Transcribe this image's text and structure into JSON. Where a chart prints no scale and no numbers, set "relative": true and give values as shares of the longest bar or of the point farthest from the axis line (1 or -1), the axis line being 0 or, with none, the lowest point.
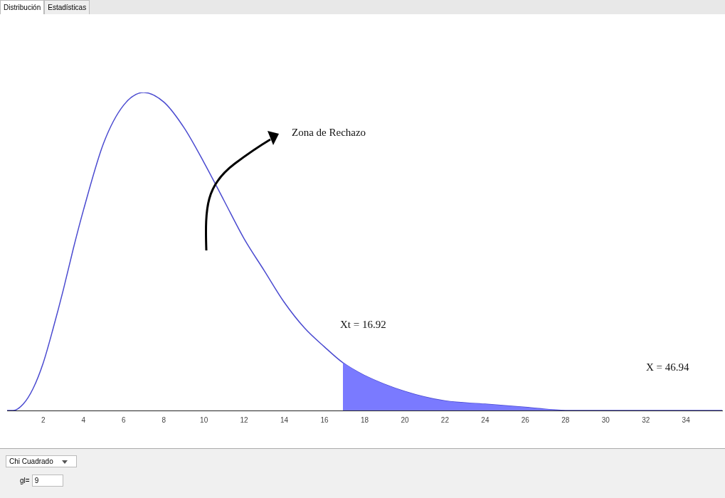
{
  "chart_data": {
    "type": "line",
    "relative": true,
    "tick_labels": "x",
    "grid": false,
    "legend": false,
    "marker": "none",
    "line_style": "solid",
    "xlim": [
      0.2,
      35.8
    ],
    "xticks": [
      2,
      4,
      6,
      8,
      10,
      12,
      14,
      16,
      18,
      20,
      22,
      24,
      26,
      28,
      30,
      32,
      34
    ],
    "series": [
      {
        "color": "#4a4ad0",
        "x": [
          0.2,
          0.5,
          1,
          1.5,
          2,
          2.5,
          3,
          3.5,
          4,
          5,
          6,
          7,
          8,
          9,
          10,
          11,
          12,
          13,
          14,
          15,
          16,
          16.92,
          18,
          20,
          22,
          24,
          26,
          28,
          30,
          32,
          34,
          35.8
        ],
        "values": [
          0,
          0,
          0.02,
          0.07,
          0.15,
          0.26,
          0.38,
          0.51,
          0.63,
          0.84,
          0.96,
          1,
          0.97,
          0.89,
          0.78,
          0.66,
          0.54,
          0.44,
          0.34,
          0.26,
          0.2,
          0.15,
          0.11,
          0.06,
          0.03,
          0.02,
          0.01,
          0,
          0,
          0,
          0,
          0
        ]
      },
      {
        "type": "area",
        "color": "#7a7aff",
        "x": [
          16.92,
          18,
          20,
          22,
          24,
          26,
          28,
          30,
          32,
          34,
          35.8
        ],
        "values": [
          0.15,
          0.11,
          0.06,
          0.03,
          0.02,
          0.01,
          0,
          0,
          0,
          0,
          0
        ]
      }
    ],
    "annotations": [
      "Distribución",
      "Estadísticas",
      "Chi Cuadrado",
      "gl=",
      "9",
      "Zona de Rechazo",
      "Xt = 16.92",
      "X = 46.94"
    ]
  }
}
